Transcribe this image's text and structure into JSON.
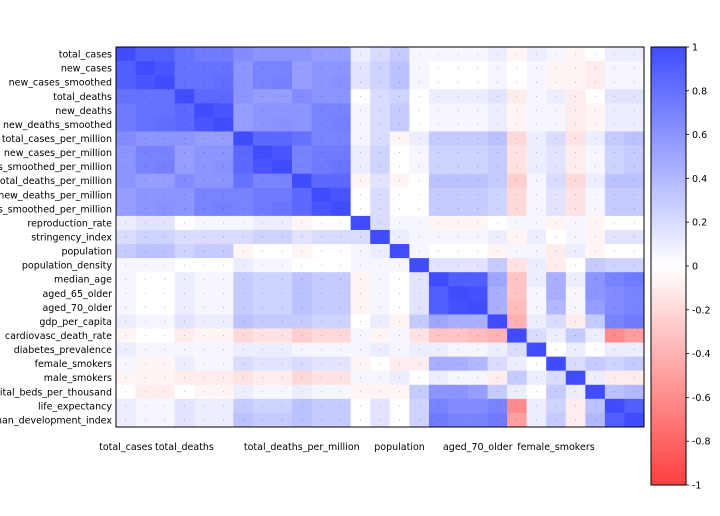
{
  "chart_data": {
    "type": "heatmap",
    "title": "",
    "xlabel": "",
    "ylabel": "",
    "variables": [
      "total_cases",
      "new_cases",
      "new_cases_smoothed",
      "total_deaths",
      "new_deaths",
      "new_deaths_smoothed",
      "total_cases_per_million",
      "new_cases_per_million",
      "new_cases_smoothed_per_million",
      "total_deaths_per_million",
      "new_deaths_per_million",
      "new_deaths_smoothed_per_million",
      "reproduction_rate",
      "stringency_index",
      "population",
      "population_density",
      "median_age",
      "aged_65_older",
      "aged_70_older",
      "gdp_per_capita",
      "cardiovasc_death_rate",
      "diabetes_prevalence",
      "female_smokers",
      "male_smokers",
      "hospital_beds_per_thousand",
      "life_expectancy",
      "human_development_index"
    ],
    "x_tick_labels": [
      "total_cases",
      "total_deaths",
      "total_deaths_per_million",
      "population",
      "aged_70_older",
      "female_smokers"
    ],
    "colorbar": {
      "min": -1,
      "max": 1,
      "ticks": [
        "1",
        "0.8",
        "0.6",
        "0.4",
        "0.2",
        "0",
        "-0.2",
        "-0.4",
        "-0.6",
        "-0.8",
        "-1"
      ]
    },
    "colors": {
      "positive": "#3f4dff",
      "negative": "#ff3f3f",
      "neutral": "#ffffff"
    },
    "values": [
      [
        1,
        0.9,
        0.9,
        0.8,
        0.75,
        0.75,
        0.65,
        0.6,
        0.6,
        0.6,
        0.55,
        0.55,
        0.1,
        0.2,
        0.3,
        0.05,
        0.05,
        0.05,
        0.05,
        0.1,
        -0.05,
        0.1,
        0.05,
        -0.05,
        0,
        0.1,
        0.1
      ],
      [
        0.9,
        1,
        0.95,
        0.8,
        0.8,
        0.8,
        0.6,
        0.7,
        0.7,
        0.55,
        0.6,
        0.6,
        0.15,
        0.25,
        0.35,
        0.05,
        0,
        0,
        0,
        0.05,
        0,
        0.05,
        -0.05,
        -0.05,
        -0.1,
        0.05,
        0.05
      ],
      [
        0.9,
        0.95,
        1,
        0.8,
        0.8,
        0.82,
        0.6,
        0.7,
        0.72,
        0.55,
        0.6,
        0.62,
        0.15,
        0.25,
        0.35,
        0.05,
        0,
        0,
        0,
        0.05,
        0,
        0.05,
        -0.05,
        -0.05,
        -0.1,
        0.05,
        0.05
      ],
      [
        0.8,
        0.8,
        0.8,
        1,
        0.85,
        0.85,
        0.6,
        0.55,
        0.55,
        0.65,
        0.6,
        0.6,
        0,
        0.2,
        0.25,
        0,
        0.1,
        0.1,
        0.1,
        0.15,
        -0.1,
        0.05,
        0.1,
        -0.1,
        0,
        0.15,
        0.15
      ],
      [
        0.75,
        0.8,
        0.8,
        0.85,
        1,
        0.95,
        0.55,
        0.6,
        0.6,
        0.6,
        0.7,
        0.7,
        0.05,
        0.2,
        0.3,
        0,
        0.05,
        0.05,
        0.05,
        0.1,
        -0.05,
        0.05,
        0.05,
        -0.1,
        -0.05,
        0.1,
        0.1
      ],
      [
        0.75,
        0.8,
        0.82,
        0.85,
        0.95,
        1,
        0.55,
        0.6,
        0.62,
        0.6,
        0.7,
        0.72,
        0.05,
        0.2,
        0.3,
        0,
        0.05,
        0.05,
        0.05,
        0.1,
        -0.05,
        0.05,
        0.05,
        -0.1,
        -0.05,
        0.1,
        0.1
      ],
      [
        0.65,
        0.6,
        0.6,
        0.6,
        0.55,
        0.55,
        1,
        0.85,
        0.85,
        0.8,
        0.7,
        0.7,
        0.05,
        0.2,
        -0.05,
        0.1,
        0.3,
        0.3,
        0.3,
        0.35,
        -0.2,
        0.1,
        0.2,
        -0.15,
        0.1,
        0.3,
        0.35
      ],
      [
        0.6,
        0.7,
        0.7,
        0.55,
        0.6,
        0.6,
        0.85,
        1,
        0.95,
        0.7,
        0.75,
        0.75,
        0.1,
        0.25,
        0,
        0.05,
        0.25,
        0.25,
        0.25,
        0.3,
        -0.15,
        0.1,
        0.15,
        -0.1,
        0.05,
        0.25,
        0.3
      ],
      [
        0.6,
        0.7,
        0.72,
        0.55,
        0.6,
        0.62,
        0.85,
        0.95,
        1,
        0.7,
        0.75,
        0.78,
        0.1,
        0.25,
        0,
        0.05,
        0.25,
        0.25,
        0.25,
        0.3,
        -0.15,
        0.1,
        0.15,
        -0.1,
        0.05,
        0.25,
        0.3
      ],
      [
        0.6,
        0.55,
        0.55,
        0.65,
        0.6,
        0.6,
        0.8,
        0.7,
        0.7,
        1,
        0.85,
        0.85,
        -0.05,
        0.15,
        -0.05,
        0,
        0.35,
        0.35,
        0.35,
        0.3,
        -0.25,
        0.05,
        0.2,
        -0.2,
        0.1,
        0.35,
        0.35
      ],
      [
        0.55,
        0.6,
        0.6,
        0.6,
        0.7,
        0.7,
        0.7,
        0.75,
        0.75,
        0.85,
        1,
        0.95,
        0,
        0.2,
        0,
        0,
        0.3,
        0.3,
        0.3,
        0.25,
        -0.2,
        0.05,
        0.15,
        -0.15,
        0.05,
        0.3,
        0.3
      ],
      [
        0.55,
        0.6,
        0.62,
        0.6,
        0.7,
        0.72,
        0.7,
        0.75,
        0.78,
        0.85,
        0.95,
        1,
        0,
        0.2,
        0,
        0,
        0.3,
        0.3,
        0.3,
        0.25,
        -0.2,
        0.05,
        0.15,
        -0.15,
        0.05,
        0.3,
        0.3
      ],
      [
        0.1,
        0.15,
        0.15,
        0,
        0.05,
        0.05,
        0.05,
        0.1,
        0.1,
        -0.05,
        0,
        0,
        1,
        0.2,
        0.05,
        0.05,
        -0.05,
        -0.05,
        -0.05,
        0,
        0.05,
        0.05,
        -0.05,
        0.05,
        -0.05,
        0,
        0
      ],
      [
        0.2,
        0.25,
        0.25,
        0.2,
        0.2,
        0.2,
        0.2,
        0.25,
        0.25,
        0.15,
        0.2,
        0.2,
        0.2,
        1,
        0.1,
        0.05,
        0.05,
        0.05,
        0.05,
        0.1,
        -0.05,
        0.1,
        0,
        0.05,
        -0.05,
        0.15,
        0.15
      ],
      [
        0.3,
        0.35,
        0.35,
        0.25,
        0.3,
        0.3,
        -0.05,
        0,
        0,
        -0.05,
        0,
        0,
        0.05,
        0.1,
        1,
        0.05,
        0,
        0,
        0,
        -0.05,
        0.05,
        0.05,
        -0.1,
        0.1,
        -0.05,
        0,
        0
      ],
      [
        0.05,
        0.05,
        0.05,
        0,
        0,
        0,
        0.1,
        0.05,
        0.05,
        0,
        0,
        0,
        0.05,
        0.05,
        0.05,
        1,
        0.15,
        0.15,
        0.15,
        0.3,
        -0.15,
        0.1,
        -0.1,
        0,
        0.3,
        0.25,
        0.25
      ],
      [
        0.05,
        0,
        0,
        0.1,
        0.05,
        0.05,
        0.3,
        0.25,
        0.25,
        0.35,
        0.3,
        0.3,
        -0.05,
        0.05,
        0,
        0.15,
        1,
        0.9,
        0.9,
        0.5,
        -0.3,
        0.1,
        0.45,
        0.1,
        0.6,
        0.7,
        0.75
      ],
      [
        0.05,
        0,
        0,
        0.1,
        0.05,
        0.05,
        0.3,
        0.25,
        0.25,
        0.35,
        0.3,
        0.3,
        -0.05,
        0.05,
        0,
        0.15,
        0.9,
        1,
        0.98,
        0.45,
        -0.3,
        0.05,
        0.45,
        0.05,
        0.6,
        0.65,
        0.7
      ],
      [
        0.05,
        0,
        0,
        0.1,
        0.05,
        0.05,
        0.3,
        0.25,
        0.25,
        0.35,
        0.3,
        0.3,
        -0.05,
        0.05,
        0,
        0.15,
        0.9,
        0.98,
        1,
        0.45,
        -0.35,
        0.05,
        0.4,
        0.05,
        0.55,
        0.65,
        0.7
      ],
      [
        0.1,
        0.05,
        0.05,
        0.15,
        0.1,
        0.1,
        0.35,
        0.3,
        0.3,
        0.3,
        0.25,
        0.25,
        0,
        0.1,
        -0.05,
        0.3,
        0.5,
        0.45,
        0.45,
        1,
        -0.4,
        0.1,
        0.2,
        -0.1,
        0.3,
        0.7,
        0.75
      ],
      [
        -0.05,
        0,
        0,
        -0.1,
        -0.05,
        -0.05,
        -0.2,
        -0.15,
        -0.15,
        -0.25,
        -0.2,
        -0.2,
        0.05,
        -0.05,
        0.05,
        -0.15,
        -0.3,
        -0.3,
        -0.35,
        -0.4,
        1,
        0.2,
        0.1,
        0.3,
        0.1,
        -0.6,
        -0.5
      ],
      [
        0.1,
        0.05,
        0.05,
        0.05,
        0.05,
        0.05,
        0.1,
        0.1,
        0.1,
        0.05,
        0.05,
        0.05,
        0.05,
        0.1,
        0.05,
        0.1,
        0.1,
        0.05,
        0.05,
        0.1,
        0.2,
        1,
        0,
        0.1,
        0,
        0.1,
        0.1
      ],
      [
        0.05,
        -0.05,
        -0.05,
        0.1,
        0.05,
        0.05,
        0.2,
        0.15,
        0.15,
        0.2,
        0.15,
        0.15,
        -0.05,
        0,
        -0.1,
        -0.1,
        0.45,
        0.45,
        0.4,
        0.2,
        0.1,
        0,
        1,
        0.2,
        0.3,
        0.25,
        0.3
      ],
      [
        -0.05,
        -0.05,
        -0.05,
        -0.1,
        -0.1,
        -0.1,
        -0.15,
        -0.1,
        -0.1,
        -0.2,
        -0.15,
        -0.15,
        0.05,
        0.05,
        0.1,
        0,
        0.1,
        0.05,
        0.05,
        -0.1,
        0.3,
        0.1,
        0.2,
        1,
        0.1,
        -0.1,
        -0.1
      ],
      [
        0,
        -0.1,
        -0.1,
        0,
        -0.05,
        -0.05,
        0.1,
        0.05,
        0.05,
        0.1,
        0.05,
        0.05,
        -0.05,
        -0.05,
        -0.05,
        0.3,
        0.6,
        0.6,
        0.55,
        0.3,
        0.1,
        0,
        0.3,
        0.1,
        1,
        0.35,
        0.4
      ],
      [
        0.1,
        0.05,
        0.05,
        0.15,
        0.1,
        0.1,
        0.3,
        0.25,
        0.25,
        0.35,
        0.3,
        0.3,
        0,
        0.15,
        0,
        0.25,
        0.7,
        0.65,
        0.65,
        0.7,
        -0.6,
        0.1,
        0.25,
        -0.1,
        0.35,
        1,
        0.9
      ],
      [
        0.1,
        0.05,
        0.05,
        0.15,
        0.1,
        0.1,
        0.35,
        0.3,
        0.3,
        0.35,
        0.3,
        0.3,
        0,
        0.15,
        0,
        0.25,
        0.75,
        0.7,
        0.7,
        0.75,
        -0.5,
        0.1,
        0.3,
        -0.1,
        0.4,
        0.9,
        1
      ]
    ]
  }
}
